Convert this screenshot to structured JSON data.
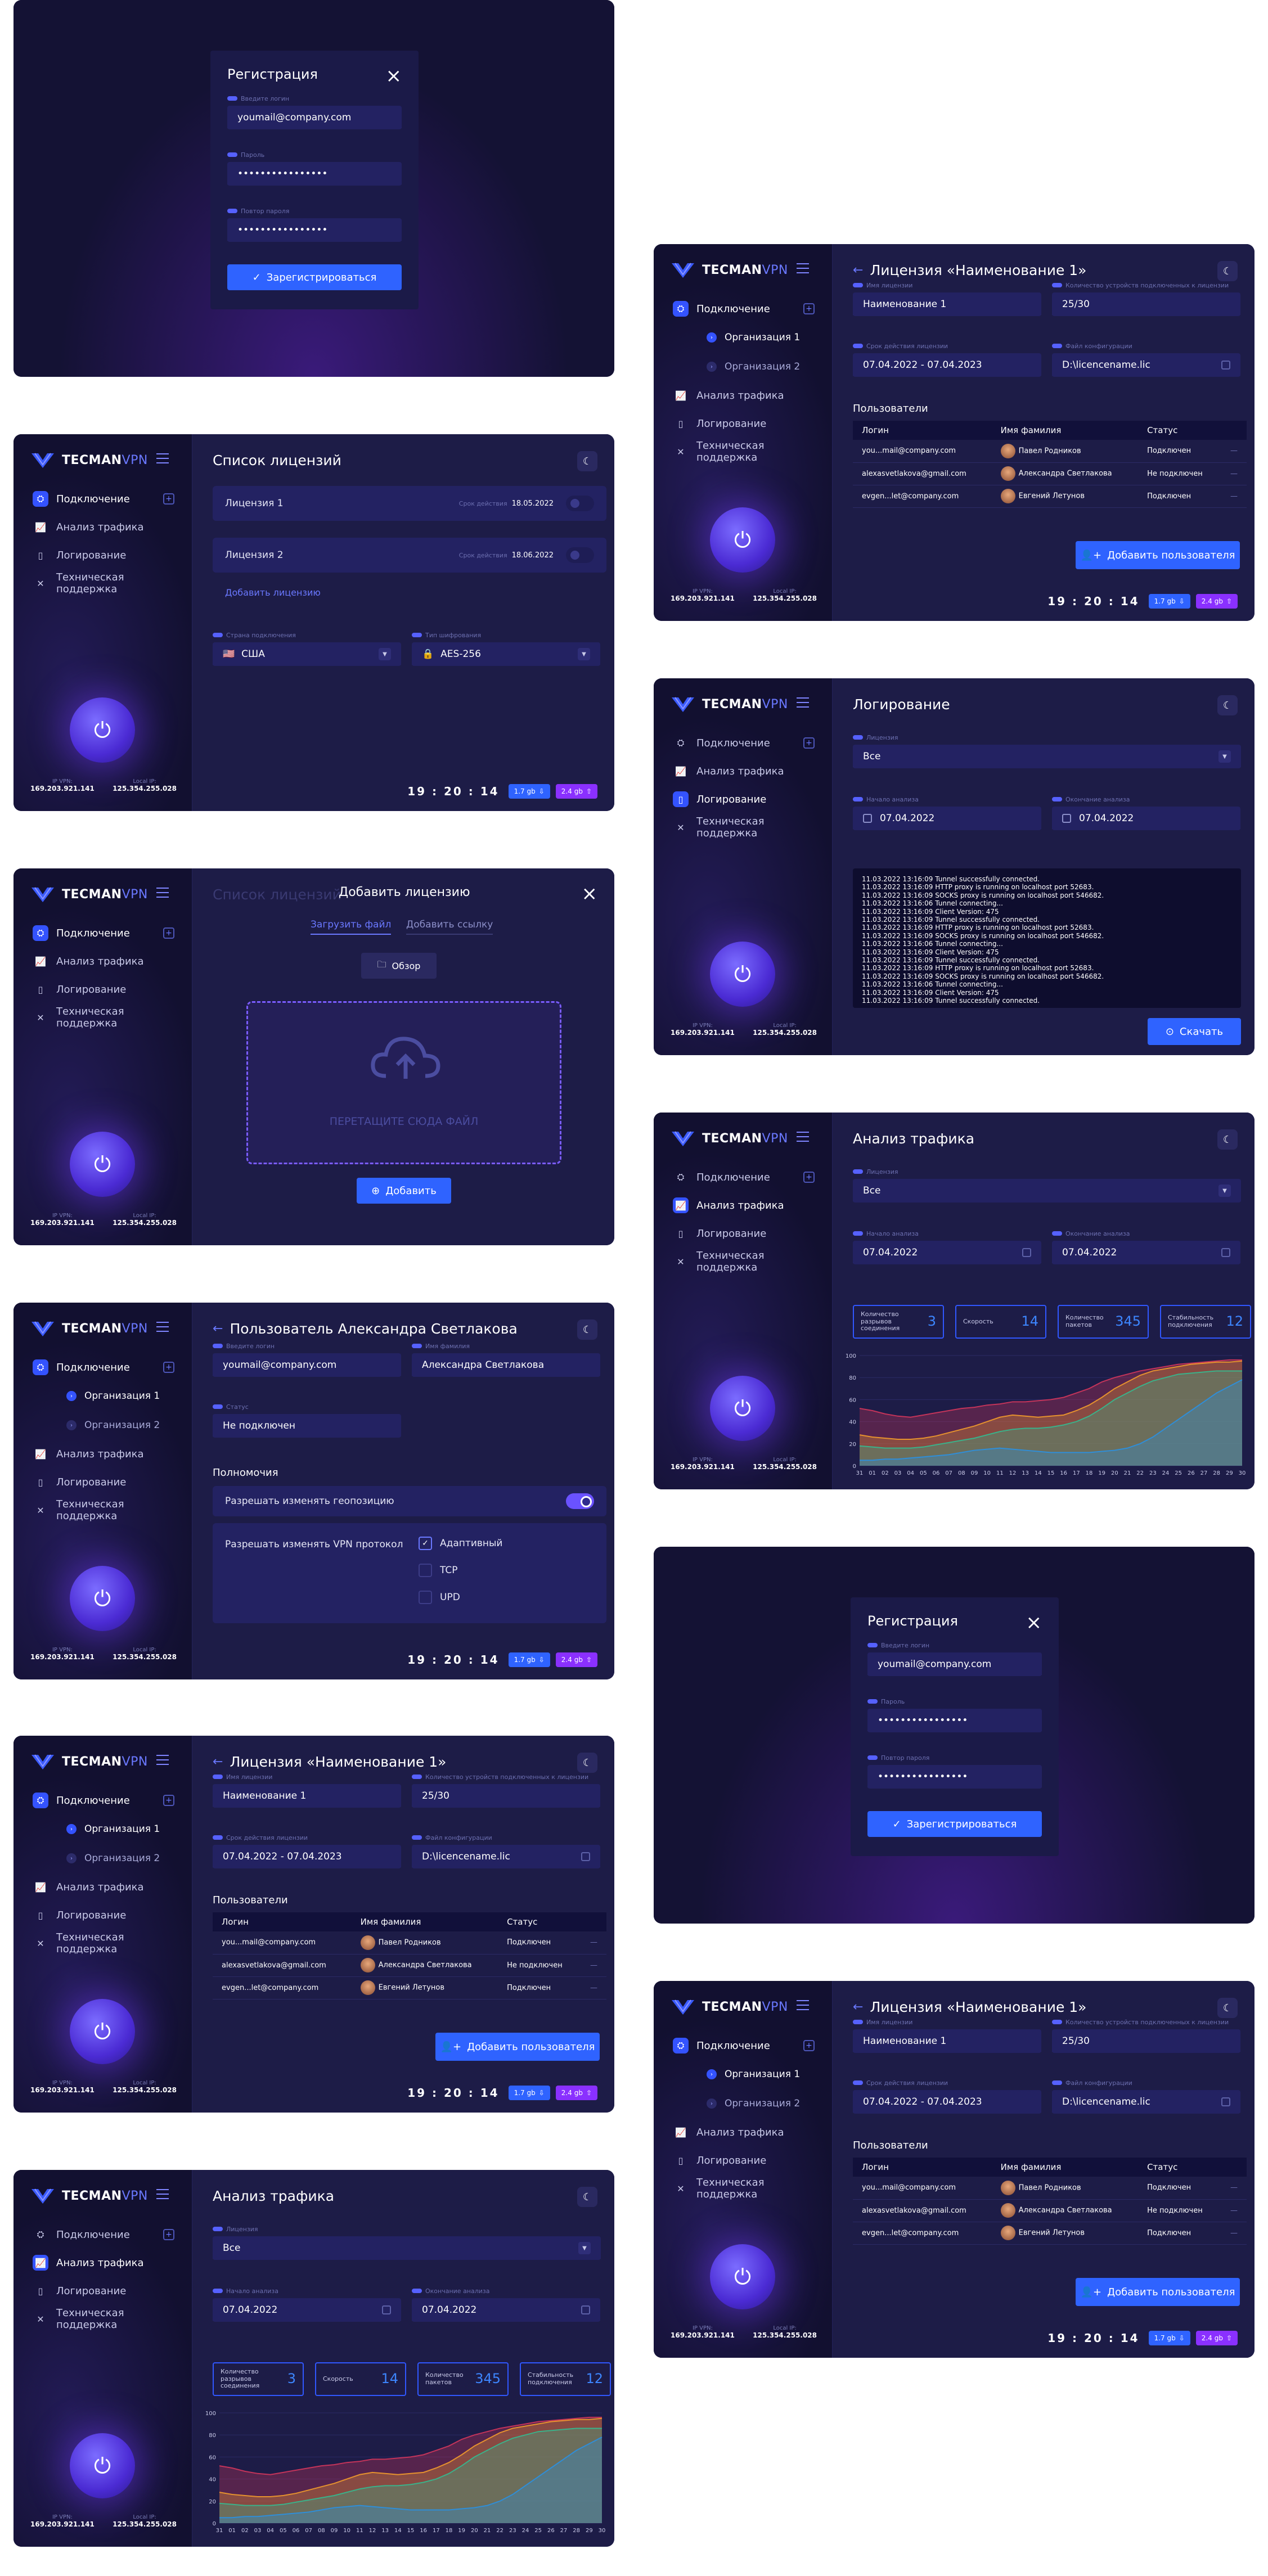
{
  "brand": {
    "name1": "TECMAN",
    "name2": "VPN"
  },
  "nav": {
    "connection": "Подключение",
    "org1": "Организация 1",
    "org2": "Организация 2",
    "traffic": "Анализ трафика",
    "logging": "Логирование",
    "support": "Техническая поддержка"
  },
  "ip": {
    "ip_label": "IP VPN:",
    "ip_value": "169.203.921.141",
    "local_label": "Local IP:",
    "local_value": "125.354.255.028"
  },
  "footer": {
    "clock": "19 : 20 : 14",
    "up": "1.7 gb",
    "down": "2.4 gb"
  },
  "registration": {
    "title": "Регистрация",
    "login_label": "Введите логин",
    "login_value": "youmail@company.com",
    "password_label": "Пароль",
    "password_value": "••••••••••••••••",
    "repeat_label": "Повтор пароля",
    "repeat_value": "••••••••••••••••",
    "button": "Зарегистрироваться"
  },
  "licenses_list": {
    "title": "Список лицензий",
    "expiry_label": "Срок действия",
    "items": [
      {
        "name": "Лицензия 1",
        "date": "18.05.2022"
      },
      {
        "name": "Лицензия 2",
        "date": "18.06.2022"
      }
    ],
    "add_link": "Добавить лицензию",
    "country_label": "Страна подключения",
    "country_value": "США",
    "enc_label": "Тип шифрования",
    "enc_value": "AES-256"
  },
  "add_license": {
    "title": "Добавить лицензию",
    "tab_file": "Загрузить файл",
    "tab_link": "Добавить ссылку",
    "browse": "Обзор",
    "drop": "ПЕРЕТАЩИТЕ СЮДА ФАЙЛ",
    "add": "Добавить",
    "bg_title": "Список лицензий"
  },
  "user": {
    "title": "Пользователь Александра Светлакова",
    "login_label": "Введите логин",
    "login_value": "youmail@company.com",
    "name_label": "Имя фамилия",
    "name_value": "Александра Светлакова",
    "status_label": "Статус",
    "status_value": "Не подключен",
    "perms_title": "Полномочия",
    "geo": "Разрешать изменять геопозицию",
    "vpn": "Разрешать изменять VPN протокол",
    "protocols": [
      "Адаптивный",
      "TCP",
      "UPD"
    ]
  },
  "license": {
    "title": "Лицензия «Наименование 1»",
    "name_label": "Имя лицензии",
    "name_value": "Наименование 1",
    "devices_label": "Количество устройств подключенных к лицензии",
    "devices_value": "25/30",
    "period_label": "Срок действия лицензии",
    "period_value": "07.04.2022 - 07.04.2023",
    "file_label": "Файл конфигурации",
    "file_value": "D:\\licencename.lic",
    "users_title": "Пользователи",
    "cols": [
      "Логин",
      "Имя фамилия",
      "Статус"
    ],
    "rows": [
      [
        "you...mail@company.com",
        "Павел Родников",
        "Подключен"
      ],
      [
        "alexasvetlakova@gmail.com",
        "Александра Светлакова",
        "Не подключен"
      ],
      [
        "evgen...let@company.com",
        "Евгений Летунов",
        "Подключен"
      ]
    ],
    "add_user": "Добавить пользователя"
  },
  "logging": {
    "title": "Логирование",
    "license_label": "Лицензия",
    "license_value": "Все",
    "start_label": "Начало анализа",
    "start_value": "07.04.2022",
    "end_label": "Окончание анализа",
    "end_value": "07.04.2022",
    "lines": [
      "11.03.2022 13:16:09 Tunnel successfully connected.",
      "11.03.2022 13:16:09 HTTP proxy is running on localhost port 52683.",
      "11.03.2022 13:16:09 SOCKS proxy is running on localhost port 546682.",
      "11.03.2022 13:16:06 Tunnel connecting...",
      "11.03.2022 13:16:09 Client Version: 475",
      "11.03.2022 13:16:09 Tunnel successfully connected.",
      "11.03.2022 13:16:09 HTTP proxy is running on localhost port 52683.",
      "11.03.2022 13:16:09 SOCKS proxy is running on localhost port 546682.",
      "11.03.2022 13:16:06 Tunnel connecting...",
      "11.03.2022 13:16:09 Client Version: 475",
      "11.03.2022 13:16:09 Tunnel successfully connected.",
      "11.03.2022 13:16:09 HTTP proxy is running on localhost port 52683.",
      "11.03.2022 13:16:09 SOCKS proxy is running on localhost port 546682.",
      "11.03.2022 13:16:06 Tunnel connecting...",
      "11.03.2022 13:16:09 Client Version: 475",
      "11.03.2022 13:16:09 Tunnel successfully connected."
    ],
    "download": "Скачать"
  },
  "traffic": {
    "title": "Анализ трафика",
    "license_label": "Лицензия",
    "license_value": "Все",
    "start_label": "Начало анализа",
    "start_value": "07.04.2022",
    "end_label": "Окончание анализа",
    "end_value": "07.04.2022",
    "stats": [
      {
        "label": "Количество разрывов соединения",
        "value": "3"
      },
      {
        "label": "Скорость",
        "value": "14"
      },
      {
        "label": "Количество пакетов",
        "value": "345"
      },
      {
        "label": "Стабильность подключения",
        "value": "12"
      }
    ]
  },
  "chart_data": {
    "type": "area",
    "x": [
      "31",
      "01",
      "02",
      "03",
      "04",
      "05",
      "06",
      "07",
      "08",
      "09",
      "10",
      "11",
      "12",
      "13",
      "14",
      "15",
      "16",
      "17",
      "18",
      "19",
      "20",
      "21",
      "22",
      "23",
      "24",
      "25",
      "26",
      "27",
      "28",
      "29",
      "30"
    ],
    "ylim": [
      0,
      100
    ],
    "yticks": [
      "0",
      "20",
      "40",
      "60",
      "80",
      "100"
    ],
    "series": [
      {
        "color": "#c4345a",
        "values": [
          52,
          50,
          47,
          45,
          44,
          46,
          48,
          50,
          52,
          53,
          55,
          56,
          58,
          58,
          59,
          60,
          62,
          66,
          70,
          76,
          80,
          83,
          86,
          88,
          90,
          92,
          93,
          94,
          95,
          96,
          96
        ]
      },
      {
        "color": "#e6922e",
        "values": [
          28,
          26,
          25,
          24,
          24,
          25,
          27,
          30,
          33,
          36,
          40,
          44,
          46,
          45,
          44,
          45,
          46,
          50,
          55,
          62,
          70,
          76,
          82,
          86,
          88,
          90,
          92,
          93,
          94,
          94,
          95
        ]
      },
      {
        "color": "#3ab28a",
        "values": [
          18,
          17,
          16,
          16,
          16,
          17,
          19,
          21,
          23,
          25,
          28,
          31,
          33,
          34,
          34,
          35,
          37,
          40,
          45,
          52,
          60,
          66,
          72,
          77,
          80,
          83,
          84,
          85,
          86,
          86,
          86
        ]
      },
      {
        "color": "#2f8ed8",
        "values": [
          5,
          5,
          6,
          6,
          7,
          8,
          9,
          10,
          12,
          14,
          15,
          16,
          15,
          14,
          13,
          12,
          12,
          12,
          12,
          13,
          14,
          16,
          20,
          26,
          34,
          42,
          50,
          58,
          66,
          72,
          78
        ]
      }
    ]
  }
}
